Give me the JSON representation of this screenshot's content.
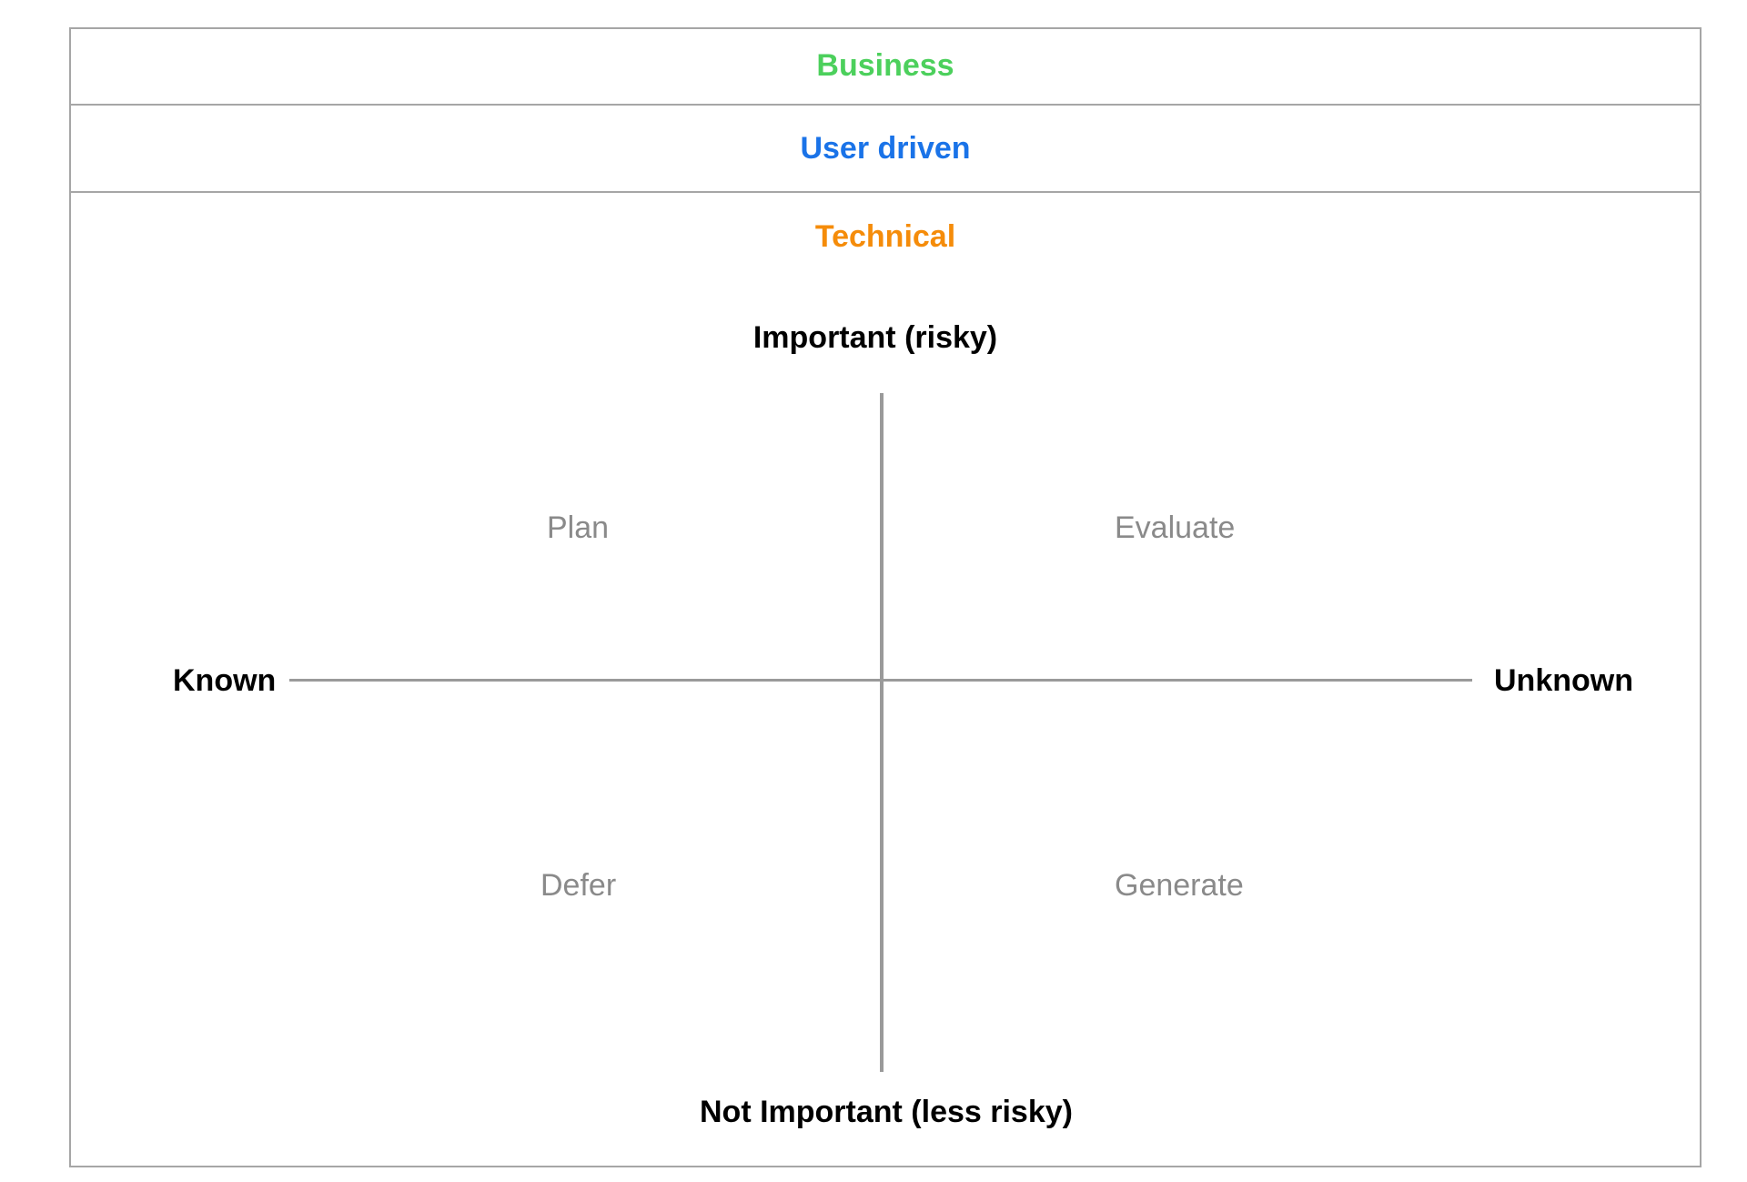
{
  "categories": [
    {
      "label": "Business",
      "color": "#4cd05c"
    },
    {
      "label": "User driven",
      "color": "#1a73e8"
    },
    {
      "label": "Technical",
      "color": "#f58c0a"
    }
  ],
  "axes": {
    "top": "Important (risky)",
    "bottom": "Not Important (less risky)",
    "left": "Known",
    "right": "Unknown"
  },
  "quadrants": {
    "top_left": "Plan",
    "top_right": "Evaluate",
    "bottom_left": "Defer",
    "bottom_right": "Generate"
  },
  "colors": {
    "border": "#a6a6a6",
    "axis_line": "#9a9a9a",
    "quadrant_text": "#8a8a8a"
  }
}
